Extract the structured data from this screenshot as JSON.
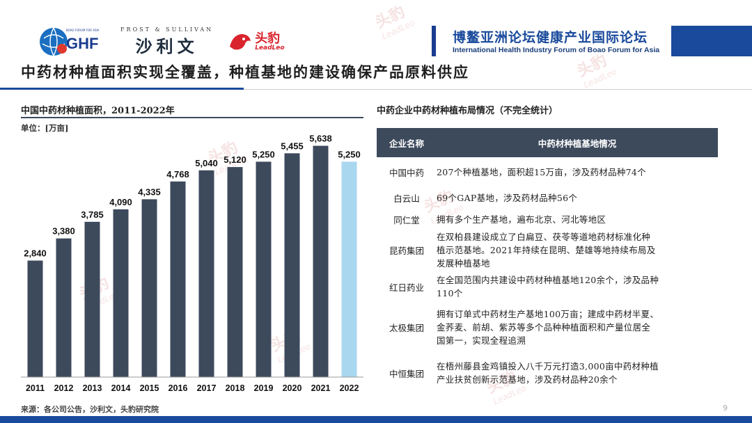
{
  "header": {
    "ghf_logo": {
      "text": "GHF",
      "caption": "BOAO FORUM FOR ASIA"
    },
    "fs_logo": {
      "top": "FROST & SULLIVAN",
      "main": "沙利文"
    },
    "lp_logo": {
      "cn": "头豹",
      "en": "LeadLeo"
    },
    "forum_cn": "博鳌亚洲论坛健康产业国际论坛",
    "forum_en": "International Health Industry Forum of Boao Forum for Asia"
  },
  "title": "中药材种植面积实现全覆盖，种植基地的建设确保产品原料供应",
  "left": {
    "heading": "中国中药材种植面积，2011-2022年",
    "unit": "单位：[万亩]"
  },
  "chart_data": {
    "type": "bar",
    "categories": [
      "2011",
      "2012",
      "2013",
      "2014",
      "2015",
      "2016",
      "2017",
      "2018",
      "2019",
      "2020",
      "2021",
      "2022"
    ],
    "values": [
      2840,
      3380,
      3785,
      4090,
      4335,
      4768,
      5040,
      5120,
      5250,
      5455,
      5638,
      5250
    ],
    "data_labels": [
      "2,840",
      "3,380",
      "3,785",
      "4,090",
      "4,335",
      "4,768",
      "5,040",
      "5,120",
      "5,250",
      "5,455",
      "5,638",
      "5,250"
    ],
    "ylim": [
      0,
      5800
    ],
    "colors": {
      "main": "#3d4a5c",
      "highlight": "#a9d7ef"
    },
    "highlight_index": 11,
    "grid": false
  },
  "right": {
    "heading": "中药企业中药材种植布局情况（不完全统计）",
    "col1": "企业名称",
    "col2": "中药材种植基地情况",
    "rows": [
      {
        "name": "中国中药",
        "lines": [
          "207个种植基地，面积超15万亩，涉及药材品种74个"
        ]
      },
      {
        "name": "白云山",
        "lines": [
          "69个GAP基地，涉及药材品种56个"
        ]
      },
      {
        "name": "同仁堂",
        "lines": [
          "拥有多个生产基地，遍布北京、河北等地区"
        ]
      },
      {
        "name": "昆药集团",
        "lines": [
          "在双柏县建设成立了白扁豆、茯苓等道地药材标准化种",
          "植示范基地。2021年持续在昆明、楚雄等地持续布局及",
          "发展种植基地"
        ]
      },
      {
        "name": "红日药业",
        "lines": [
          "在全国范围内共建设中药材种植基地120余个，涉及品种",
          "110个"
        ]
      },
      {
        "name": "太极集团",
        "lines": [
          "拥有订单式中药材生产基地100万亩；建成中药材半夏、",
          "金荞麦、前胡、紫苏等多个品种种植面积和产量位居全",
          "国第一，实现全程追溯"
        ]
      },
      {
        "name": "中恒集团",
        "lines": [
          "在梧州藤县金鸡镇投入八千万元打造3,000亩中药材种植",
          "产业扶贫创新示范基地，涉及药材品种20余个"
        ]
      }
    ]
  },
  "footer": {
    "source": "来源：各公司公告，沙利文，头豹研究院",
    "page": "9"
  },
  "watermark": {
    "cn": "头豹",
    "en": "LeadLeo"
  }
}
